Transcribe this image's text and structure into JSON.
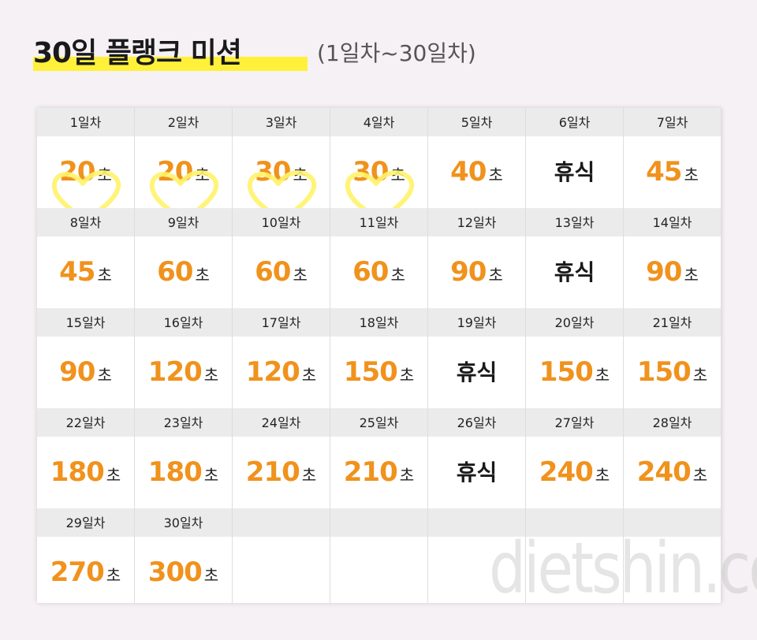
{
  "header": {
    "title": "30일 플랭크 미션",
    "subtitle": "(1일차~30일차)"
  },
  "unit": "초",
  "days": [
    {
      "label": "1일차",
      "value": 20
    },
    {
      "label": "2일차",
      "value": 20
    },
    {
      "label": "3일차",
      "value": 30
    },
    {
      "label": "4일차",
      "value": 30
    },
    {
      "label": "5일차",
      "value": 40
    },
    {
      "label": "6일차",
      "rest": "휴식"
    },
    {
      "label": "7일차",
      "value": 45
    },
    {
      "label": "8일차",
      "value": 45
    },
    {
      "label": "9일차",
      "value": 60
    },
    {
      "label": "10일차",
      "value": 60
    },
    {
      "label": "11일차",
      "value": 60
    },
    {
      "label": "12일차",
      "value": 90
    },
    {
      "label": "13일차",
      "rest": "휴식"
    },
    {
      "label": "14일차",
      "value": 90
    },
    {
      "label": "15일차",
      "value": 90
    },
    {
      "label": "16일차",
      "value": 120
    },
    {
      "label": "17일차",
      "value": 120
    },
    {
      "label": "18일차",
      "value": 150
    },
    {
      "label": "19일차",
      "rest": "휴식"
    },
    {
      "label": "20일차",
      "value": 150
    },
    {
      "label": "21일차",
      "value": 150
    },
    {
      "label": "22일차",
      "value": 180
    },
    {
      "label": "23일차",
      "value": 180
    },
    {
      "label": "24일차",
      "value": 210
    },
    {
      "label": "25일차",
      "value": 210
    },
    {
      "label": "26일차",
      "rest": "휴식"
    },
    {
      "label": "27일차",
      "value": 240
    },
    {
      "label": "28일차",
      "value": 240
    },
    {
      "label": "29일차",
      "value": 270
    },
    {
      "label": "30일차",
      "value": 300
    }
  ],
  "watermark": "dietshin.com"
}
